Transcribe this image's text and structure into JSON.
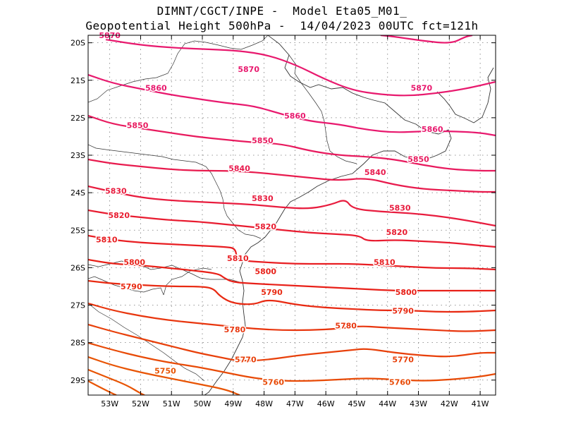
{
  "title": {
    "line1": "DIMNT/CGCT/INPE -  Model Eta05_M01_",
    "line2": "Geopotential Height 500hPa -  14/04/2023 00UTC fct=121h"
  },
  "map": {
    "lon_range": [
      -53.7,
      -40.5
    ],
    "lat_range": [
      -29.4,
      -19.8
    ],
    "lat_ticks": [
      {
        "value": -20,
        "label": "20S"
      },
      {
        "value": -21,
        "label": "21S"
      },
      {
        "value": -22,
        "label": "22S"
      },
      {
        "value": -23,
        "label": "23S"
      },
      {
        "value": -24,
        "label": "24S"
      },
      {
        "value": -25,
        "label": "25S"
      },
      {
        "value": -26,
        "label": "26S"
      },
      {
        "value": -27,
        "label": "27S"
      },
      {
        "value": -28,
        "label": "28S"
      },
      {
        "value": -29,
        "label": "29S"
      }
    ],
    "lon_ticks": [
      {
        "value": -53,
        "label": "53W"
      },
      {
        "value": -52,
        "label": "52W"
      },
      {
        "value": -51,
        "label": "51W"
      },
      {
        "value": -50,
        "label": "50W"
      },
      {
        "value": -49,
        "label": "49W"
      },
      {
        "value": -48,
        "label": "48W"
      },
      {
        "value": -47,
        "label": "47W"
      },
      {
        "value": -46,
        "label": "46W"
      },
      {
        "value": -45,
        "label": "45W"
      },
      {
        "value": -44,
        "label": "44W"
      },
      {
        "value": -43,
        "label": "43W"
      },
      {
        "value": -42,
        "label": "42W"
      },
      {
        "value": -41,
        "label": "41W"
      }
    ],
    "grid": "dotted",
    "contour_colors": {
      "5870": "#e8196e",
      "5860": "#e8196e",
      "5850": "#e81a5e",
      "5840": "#e81b4e",
      "5830": "#e81c3e",
      "5820": "#e81c30",
      "5810": "#e81e22",
      "5800": "#e82018",
      "5790": "#e82a12",
      "5780": "#e8360e",
      "5770": "#e8400a",
      "5760": "#e84a06",
      "5750": "#e85404"
    },
    "contour_labels": [
      {
        "text": "5870",
        "lon": -53.0,
        "lat": -19.8
      },
      {
        "text": "5870",
        "lon": -48.5,
        "lat": -20.7
      },
      {
        "text": "5870",
        "lon": -42.9,
        "lat": -21.2
      },
      {
        "text": "5860",
        "lon": -51.5,
        "lat": -21.2
      },
      {
        "text": "5860",
        "lon": -47.0,
        "lat": -21.95
      },
      {
        "text": "5860",
        "lon": -42.55,
        "lat": -22.3
      },
      {
        "text": "5850",
        "lon": -52.1,
        "lat": -22.2
      },
      {
        "text": "5850",
        "lon": -48.05,
        "lat": -22.6
      },
      {
        "text": "5850",
        "lon": -43.0,
        "lat": -23.1
      },
      {
        "text": "5840",
        "lon": -48.8,
        "lat": -23.35
      },
      {
        "text": "5840",
        "lon": -44.4,
        "lat": -23.45
      },
      {
        "text": "5830",
        "lon": -52.8,
        "lat": -23.95
      },
      {
        "text": "5830",
        "lon": -48.05,
        "lat": -24.15
      },
      {
        "text": "5830",
        "lon": -43.6,
        "lat": -24.4
      },
      {
        "text": "5820",
        "lon": -52.7,
        "lat": -24.6
      },
      {
        "text": "5820",
        "lon": -47.95,
        "lat": -24.9
      },
      {
        "text": "5820",
        "lon": -43.7,
        "lat": -25.05
      },
      {
        "text": "5810",
        "lon": -53.1,
        "lat": -25.25
      },
      {
        "text": "5810",
        "lon": -48.85,
        "lat": -25.75
      },
      {
        "text": "5810",
        "lon": -44.1,
        "lat": -25.85
      },
      {
        "text": "5800",
        "lon": -52.2,
        "lat": -25.85
      },
      {
        "text": "5800",
        "lon": -47.95,
        "lat": -26.1
      },
      {
        "text": "5800",
        "lon": -43.4,
        "lat": -26.65
      },
      {
        "text": "5790",
        "lon": -52.3,
        "lat": -26.5
      },
      {
        "text": "5790",
        "lon": -47.75,
        "lat": -26.65
      },
      {
        "text": "5790",
        "lon": -43.5,
        "lat": -27.15
      },
      {
        "text": "5780",
        "lon": -48.95,
        "lat": -27.65
      },
      {
        "text": "5780",
        "lon": -45.35,
        "lat": -27.55
      },
      {
        "text": "5770",
        "lon": -48.6,
        "lat": -28.45
      },
      {
        "text": "5770",
        "lon": -43.5,
        "lat": -28.45
      },
      {
        "text": "5760",
        "lon": -47.7,
        "lat": -29.05
      },
      {
        "text": "5760",
        "lon": -43.6,
        "lat": -29.05
      },
      {
        "text": "5750",
        "lon": -51.2,
        "lat": -28.75
      }
    ]
  }
}
